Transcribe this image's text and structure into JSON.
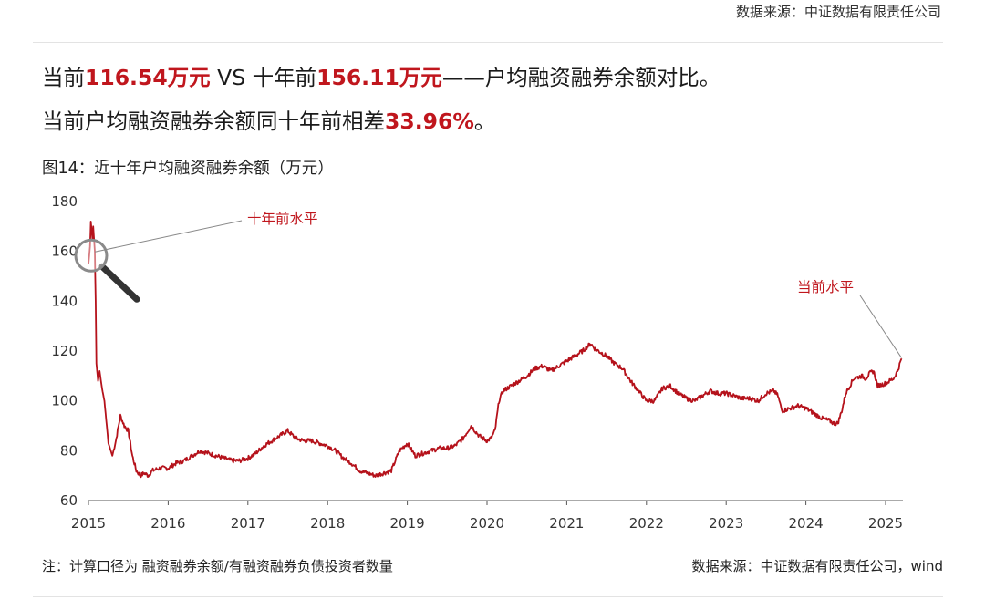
{
  "header": {
    "top_source": "数据来源：中证数据有限责任公司"
  },
  "headline1": {
    "p1": "当前",
    "v1": "116.54万元",
    "p2": " VS 十年前",
    "v2": "156.11万元",
    "p3": "——户均融资融券余额对比。"
  },
  "headline2": {
    "p1": "当前户均融资融券余额同十年前相差",
    "v1": "33.96%",
    "p2": "。"
  },
  "figure_title": "图14：近十年户均融资融券余额（万元）",
  "footer": {
    "note": "注：计算口径为 融资融券余额/有融资融券负债投资者数量",
    "source": "数据来源：中证数据有限责任公司，wind"
  },
  "colors": {
    "line": "#b5121b",
    "accent": "#c0161d"
  },
  "chart_data": {
    "type": "line",
    "title": "图14：近十年户均融资融券余额（万元）",
    "xlabel": "",
    "ylabel": "",
    "ylim": [
      60,
      180
    ],
    "xlim": [
      2015.0,
      2025.3
    ],
    "yticks": [
      "60",
      "80",
      "100",
      "120",
      "140",
      "160",
      "180"
    ],
    "xticks": [
      "2015",
      "2016",
      "2017",
      "2018",
      "2019",
      "2020",
      "2021",
      "2022",
      "2023",
      "2024",
      "2025"
    ],
    "grid": false,
    "series": [
      {
        "name": "",
        "x": [
          2015.0,
          2015.02,
          2015.03,
          2015.05,
          2015.06,
          2015.08,
          2015.09,
          2015.1,
          2015.12,
          2015.14,
          2015.17,
          2015.2,
          2015.23,
          2015.25,
          2015.28,
          2015.3,
          2015.35,
          2015.4,
          2015.45,
          2015.5,
          2015.55,
          2015.6,
          2015.65,
          2015.7,
          2015.75,
          2015.8,
          2015.9,
          2016.0,
          2016.1,
          2016.2,
          2016.3,
          2016.4,
          2016.5,
          2016.6,
          2016.7,
          2016.8,
          2016.9,
          2017.0,
          2017.1,
          2017.2,
          2017.3,
          2017.4,
          2017.5,
          2017.6,
          2017.7,
          2017.8,
          2017.9,
          2018.0,
          2018.1,
          2018.2,
          2018.3,
          2018.4,
          2018.5,
          2018.6,
          2018.7,
          2018.8,
          2018.9,
          2019.0,
          2019.1,
          2019.2,
          2019.3,
          2019.4,
          2019.5,
          2019.6,
          2019.7,
          2019.8,
          2019.9,
          2020.0,
          2020.05,
          2020.1,
          2020.15,
          2020.2,
          2020.3,
          2020.4,
          2020.5,
          2020.6,
          2020.7,
          2020.8,
          2020.9,
          2021.0,
          2021.1,
          2021.2,
          2021.3,
          2021.35,
          2021.4,
          2021.5,
          2021.6,
          2021.7,
          2021.8,
          2021.9,
          2021.95,
          2022.0,
          2022.1,
          2022.2,
          2022.3,
          2022.4,
          2022.5,
          2022.6,
          2022.7,
          2022.8,
          2022.9,
          2023.0,
          2023.1,
          2023.2,
          2023.3,
          2023.4,
          2023.5,
          2023.6,
          2023.65,
          2023.7,
          2023.8,
          2023.9,
          2024.0,
          2024.1,
          2024.2,
          2024.3,
          2024.35,
          2024.4,
          2024.45,
          2024.5,
          2024.6,
          2024.7,
          2024.75,
          2024.8,
          2024.85,
          2024.9,
          2025.0,
          2025.1,
          2025.15,
          2025.2
        ],
        "values": [
          155,
          162,
          172,
          165,
          170,
          160,
          140,
          115,
          108,
          112,
          105,
          100,
          90,
          83,
          80,
          78,
          85,
          94,
          90,
          88,
          78,
          72,
          70,
          71,
          70,
          72,
          73,
          73,
          75,
          76,
          78,
          80,
          79,
          78,
          77,
          76,
          76,
          77,
          79,
          82,
          84,
          86,
          88,
          85,
          84,
          84,
          83,
          82,
          80,
          77,
          75,
          72,
          71,
          70,
          71,
          72,
          80,
          83,
          78,
          79,
          80,
          81,
          81,
          82,
          85,
          90,
          86,
          84,
          85,
          88,
          100,
          104,
          106,
          108,
          110,
          113,
          114,
          112,
          114,
          116,
          118,
          120,
          123,
          121,
          120,
          118,
          115,
          113,
          108,
          104,
          102,
          100,
          100,
          105,
          106,
          103,
          101,
          100,
          102,
          104,
          103,
          103,
          102,
          101,
          101,
          100,
          103,
          104,
          102,
          96,
          97,
          98,
          97,
          95,
          93,
          92,
          91,
          91,
          96,
          103,
          109,
          110,
          109,
          111,
          112,
          106,
          107,
          109,
          112,
          117
        ]
      }
    ],
    "annotations": [
      {
        "text": "十年前水平",
        "x": 2015.0,
        "y": 156.11
      },
      {
        "text": "当前水平",
        "x": 2025.2,
        "y": 116.54
      }
    ]
  }
}
